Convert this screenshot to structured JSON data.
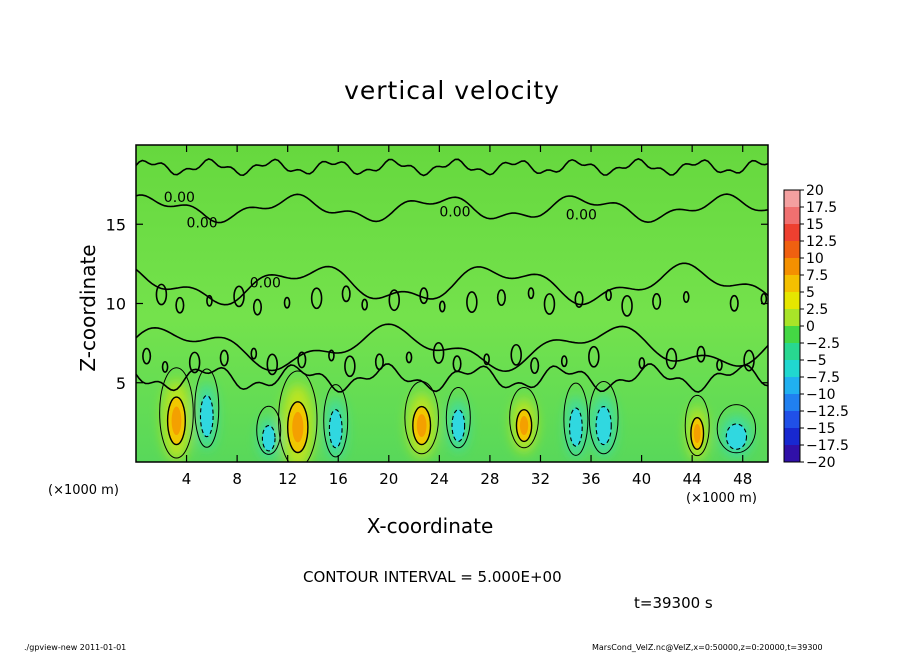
{
  "figure": {
    "title": "vertical velocity",
    "contour_interval_text": "CONTOUR INTERVAL = 5.000E+00",
    "time_text": "t=39300 s",
    "footer_left": "./gpview-new   2011-01-01",
    "footer_right": "MarsCond_VelZ.nc@VelZ,x=0:50000,z=0:20000,t=39300"
  },
  "colors": {
    "background_field": "#6ee048",
    "frame": "#000000"
  },
  "chart_data": {
    "type": "heatmap",
    "title": "vertical velocity",
    "xlabel": "X-coordinate",
    "ylabel": "Z-coordinate",
    "x_unit_label": "(×1000 m)",
    "y_unit_label": "(×1000 m)",
    "xlim": [
      0,
      50
    ],
    "ylim": [
      0,
      20
    ],
    "x_ticks": [
      4,
      8,
      12,
      16,
      20,
      24,
      28,
      32,
      36,
      40,
      44,
      48
    ],
    "y_ticks": [
      5,
      10,
      15
    ],
    "contour_interval": 5,
    "contour_labels": [
      "0.00",
      "0.00",
      "0.00",
      "0.00",
      "0.00"
    ],
    "colorbar": {
      "levels": [
        "20",
        "17.5",
        "15",
        "12.5",
        "10",
        "7.5",
        "5",
        "2.5",
        "0",
        "−2.5",
        "−5",
        "−7.5",
        "−10",
        "−12.5",
        "−15",
        "−17.5",
        "−20"
      ],
      "colors": [
        "#f4a0a0",
        "#f07070",
        "#ee4030",
        "#f06010",
        "#f49000",
        "#f4c000",
        "#e6e600",
        "#a8e428",
        "#44d844",
        "#28d890",
        "#20d8d0",
        "#20b0f0",
        "#2080f0",
        "#2050e8",
        "#1828d0",
        "#3010a8",
        "#6010b0"
      ]
    },
    "updraft_cells": [
      {
        "x": 3.2,
        "z": 2.6,
        "rx": 0.7,
        "rz": 1.5,
        "value": 9
      },
      {
        "x": 12.8,
        "z": 2.2,
        "rx": 0.8,
        "rz": 1.6,
        "value": 9
      },
      {
        "x": 22.6,
        "z": 2.3,
        "rx": 0.7,
        "rz": 1.2,
        "value": 7
      },
      {
        "x": 30.7,
        "z": 2.3,
        "rx": 0.6,
        "rz": 1.0,
        "value": 6
      },
      {
        "x": 44.4,
        "z": 1.8,
        "rx": 0.5,
        "rz": 1.0,
        "value": 5
      }
    ],
    "downdraft_cells": [
      {
        "x": 5.6,
        "z": 2.9,
        "rx": 0.5,
        "rz": 1.3,
        "value": -6
      },
      {
        "x": 15.8,
        "z": 2.1,
        "rx": 0.5,
        "rz": 1.2,
        "value": -7
      },
      {
        "x": 10.5,
        "z": 1.5,
        "rx": 0.5,
        "rz": 0.8,
        "value": -4
      },
      {
        "x": 25.5,
        "z": 2.3,
        "rx": 0.5,
        "rz": 1.0,
        "value": -4
      },
      {
        "x": 34.8,
        "z": 2.2,
        "rx": 0.5,
        "rz": 1.2,
        "value": -4
      },
      {
        "x": 37.0,
        "z": 2.3,
        "rx": 0.6,
        "rz": 1.2,
        "value": -5
      },
      {
        "x": 47.5,
        "z": 1.6,
        "rx": 0.8,
        "rz": 0.8,
        "value": -3
      }
    ]
  }
}
